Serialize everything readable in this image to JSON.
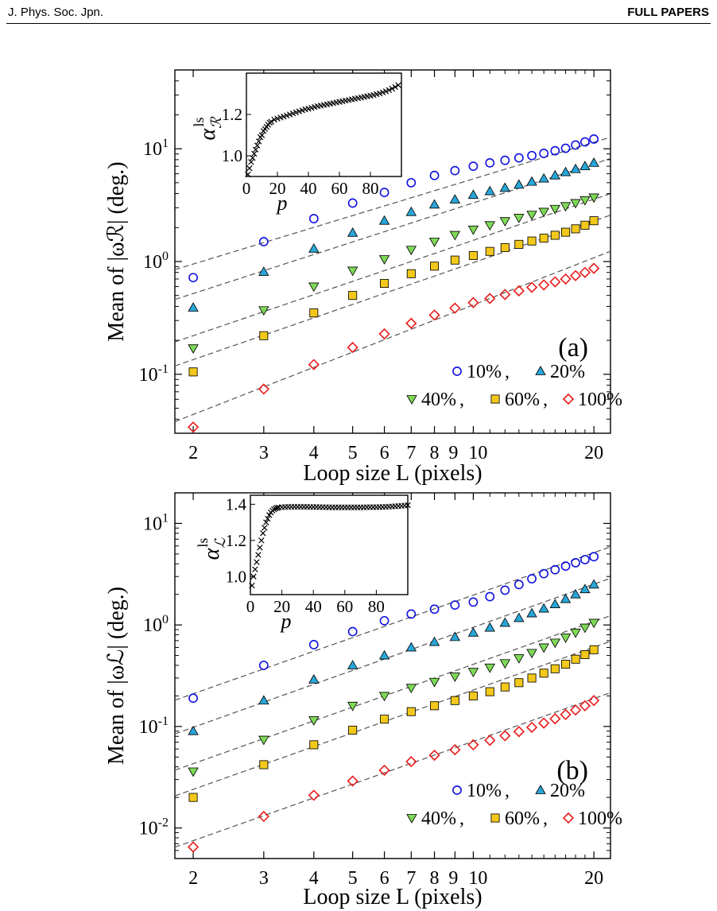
{
  "header": {
    "journal": "J. Phys. Soc. Jpn.",
    "section": "FULL PAPERS"
  },
  "colors": {
    "10%": "#1010e0",
    "20%": "#29a6d8",
    "40%": "#7ed957",
    "60%": "#f2c81a",
    "100%": "#e81c1c",
    "fit_line": "#555555"
  },
  "chart_data": [
    {
      "type": "scatter",
      "panel_label": "(a)",
      "xlabel": "Loop size L (pixels)",
      "ylabel": "Mean of |ωℛ| (deg.)",
      "xscale": "log",
      "yscale": "log",
      "xlim": [
        1.8,
        22
      ],
      "ylim": [
        0.03,
        50
      ],
      "x_ticks": [
        2,
        3,
        4,
        5,
        6,
        7,
        8,
        9,
        10,
        20
      ],
      "x_tick_labels": [
        "2",
        "3",
        "4",
        "5",
        "6",
        "7",
        "8",
        "9",
        "10",
        "20"
      ],
      "y_ticks": [
        0.1,
        1,
        10
      ],
      "y_tick_labels": [
        [
          "10",
          "-1"
        ],
        [
          "10",
          "0"
        ],
        [
          "10",
          "1"
        ]
      ],
      "legend": {
        "placement": "bottom-right",
        "rows": [
          [
            "10%",
            "20%"
          ],
          [
            "40%",
            "60%",
            "100%"
          ]
        ]
      },
      "x": [
        2,
        3,
        4,
        5,
        6,
        7,
        8,
        9,
        10,
        11,
        12,
        13,
        14,
        15,
        16,
        17,
        18,
        19,
        20
      ],
      "series": [
        {
          "name": "10%",
          "marker": "circle",
          "fit": [
            0.95,
            1.08
          ],
          "values": [
            0.72,
            1.5,
            2.4,
            3.3,
            4.1,
            5.0,
            5.8,
            6.4,
            7.0,
            7.5,
            7.9,
            8.3,
            8.7,
            9.1,
            9.6,
            10.1,
            10.8,
            11.5,
            12.2
          ]
        },
        {
          "name": "20%",
          "marker": "triangle-up",
          "fit": [
            0.52,
            1.15
          ],
          "values": [
            0.39,
            0.81,
            1.3,
            1.8,
            2.3,
            2.75,
            3.2,
            3.55,
            3.9,
            4.2,
            4.5,
            4.8,
            5.1,
            5.45,
            5.8,
            6.2,
            6.6,
            7.0,
            7.5
          ]
        },
        {
          "name": "40%",
          "marker": "triangle-down",
          "fit": [
            0.22,
            1.21
          ],
          "values": [
            0.17,
            0.37,
            0.6,
            0.83,
            1.05,
            1.27,
            1.5,
            1.72,
            1.92,
            2.1,
            2.28,
            2.44,
            2.6,
            2.76,
            2.93,
            3.1,
            3.3,
            3.5,
            3.7
          ]
        },
        {
          "name": "60%",
          "marker": "square",
          "fit": [
            0.135,
            1.23
          ],
          "values": [
            0.105,
            0.22,
            0.35,
            0.5,
            0.64,
            0.78,
            0.91,
            1.03,
            1.13,
            1.23,
            1.33,
            1.42,
            1.52,
            1.61,
            1.71,
            1.82,
            1.95,
            2.1,
            2.3
          ]
        },
        {
          "name": "100%",
          "marker": "diamond",
          "fit": [
            0.044,
            1.39
          ],
          "values": [
            0.034,
            0.074,
            0.122,
            0.173,
            0.228,
            0.283,
            0.335,
            0.386,
            0.432,
            0.47,
            0.51,
            0.55,
            0.59,
            0.62,
            0.66,
            0.7,
            0.75,
            0.8,
            0.87
          ]
        }
      ],
      "inset": {
        "type": "scatter",
        "xlabel": "p",
        "ylabel": "α",
        "ylabel_sup": "ls",
        "ylabel_sub": "ℛ",
        "xlim": [
          0,
          100
        ],
        "ylim": [
          0.9,
          1.4
        ],
        "x_ticks": [
          0,
          20,
          40,
          60,
          80
        ],
        "y_ticks": [
          1.0,
          1.2
        ],
        "y_tick_labels": [
          "1.0",
          "1.2"
        ],
        "points": [
          [
            1,
            0.91
          ],
          [
            2,
            0.94
          ],
          [
            3,
            0.97
          ],
          [
            4,
            0.99
          ],
          [
            5,
            1.01
          ],
          [
            6,
            1.03
          ],
          [
            7,
            1.05
          ],
          [
            8,
            1.07
          ],
          [
            9,
            1.09
          ],
          [
            10,
            1.1
          ],
          [
            11,
            1.12
          ],
          [
            12,
            1.13
          ],
          [
            13,
            1.14
          ],
          [
            14,
            1.15
          ],
          [
            15,
            1.16
          ],
          [
            16,
            1.165
          ],
          [
            18,
            1.175
          ],
          [
            20,
            1.18
          ],
          [
            22,
            1.185
          ],
          [
            24,
            1.19
          ],
          [
            26,
            1.195
          ],
          [
            28,
            1.2
          ],
          [
            30,
            1.205
          ],
          [
            32,
            1.21
          ],
          [
            34,
            1.215
          ],
          [
            36,
            1.22
          ],
          [
            38,
            1.225
          ],
          [
            40,
            1.228
          ],
          [
            42,
            1.232
          ],
          [
            44,
            1.236
          ],
          [
            46,
            1.24
          ],
          [
            48,
            1.243
          ],
          [
            50,
            1.246
          ],
          [
            52,
            1.249
          ],
          [
            54,
            1.252
          ],
          [
            56,
            1.255
          ],
          [
            58,
            1.258
          ],
          [
            60,
            1.261
          ],
          [
            62,
            1.264
          ],
          [
            64,
            1.267
          ],
          [
            66,
            1.27
          ],
          [
            68,
            1.273
          ],
          [
            70,
            1.276
          ],
          [
            72,
            1.279
          ],
          [
            74,
            1.282
          ],
          [
            76,
            1.285
          ],
          [
            78,
            1.288
          ],
          [
            80,
            1.291
          ],
          [
            82,
            1.294
          ],
          [
            84,
            1.298
          ],
          [
            86,
            1.302
          ],
          [
            88,
            1.307
          ],
          [
            90,
            1.312
          ],
          [
            92,
            1.318
          ],
          [
            94,
            1.325
          ],
          [
            96,
            1.333
          ],
          [
            98,
            1.342
          ]
        ]
      }
    },
    {
      "type": "scatter",
      "panel_label": "(b)",
      "xlabel": "Loop size L (pixels)",
      "ylabel": "Mean of |ωℒ| (deg.)",
      "xscale": "log",
      "yscale": "log",
      "xlim": [
        1.8,
        22
      ],
      "ylim": [
        0.005,
        20
      ],
      "x_ticks": [
        2,
        3,
        4,
        5,
        6,
        7,
        8,
        9,
        10,
        20
      ],
      "x_tick_labels": [
        "2",
        "3",
        "4",
        "5",
        "6",
        "7",
        "8",
        "9",
        "10",
        "20"
      ],
      "y_ticks": [
        0.01,
        0.1,
        1,
        10
      ],
      "y_tick_labels": [
        [
          "10",
          "-2"
        ],
        [
          "10",
          "-1"
        ],
        [
          "10",
          "0"
        ],
        [
          "10",
          "1"
        ]
      ],
      "legend": {
        "placement": "bottom-right",
        "rows": [
          [
            "10%",
            "20%"
          ],
          [
            "40%",
            "60%",
            "100%"
          ]
        ]
      },
      "x": [
        2,
        3,
        4,
        5,
        6,
        7,
        8,
        9,
        10,
        11,
        12,
        13,
        14,
        15,
        16,
        17,
        18,
        19,
        20
      ],
      "series": [
        {
          "name": "10%",
          "marker": "circle",
          "fit": [
            0.21,
            1.39
          ],
          "values": [
            0.19,
            0.4,
            0.64,
            0.86,
            1.1,
            1.28,
            1.43,
            1.57,
            1.68,
            1.9,
            2.2,
            2.5,
            2.85,
            3.2,
            3.5,
            3.8,
            4.1,
            4.4,
            4.7
          ]
        },
        {
          "name": "20%",
          "marker": "triangle-up",
          "fit": [
            0.098,
            1.41
          ],
          "values": [
            0.09,
            0.18,
            0.29,
            0.4,
            0.5,
            0.6,
            0.68,
            0.76,
            0.84,
            0.94,
            1.05,
            1.17,
            1.3,
            1.45,
            1.6,
            1.8,
            2.0,
            2.25,
            2.5
          ]
        },
        {
          "name": "40%",
          "marker": "triangle-down",
          "fit": [
            0.043,
            1.4
          ],
          "values": [
            0.036,
            0.074,
            0.115,
            0.16,
            0.2,
            0.24,
            0.275,
            0.31,
            0.345,
            0.38,
            0.42,
            0.47,
            0.53,
            0.6,
            0.67,
            0.75,
            0.84,
            0.94,
            1.05
          ]
        },
        {
          "name": "60%",
          "marker": "square",
          "fit": [
            0.024,
            1.4
          ],
          "values": [
            0.02,
            0.042,
            0.066,
            0.092,
            0.118,
            0.14,
            0.16,
            0.18,
            0.2,
            0.22,
            0.245,
            0.27,
            0.3,
            0.335,
            0.37,
            0.41,
            0.46,
            0.51,
            0.57
          ]
        },
        {
          "name": "100%",
          "marker": "diamond",
          "fit": [
            0.0075,
            1.4
          ],
          "values": [
            0.0065,
            0.013,
            0.021,
            0.029,
            0.037,
            0.045,
            0.052,
            0.059,
            0.066,
            0.073,
            0.081,
            0.089,
            0.098,
            0.108,
            0.119,
            0.131,
            0.145,
            0.16,
            0.18
          ]
        }
      ],
      "inset": {
        "type": "scatter",
        "xlabel": "p",
        "ylabel": "α",
        "ylabel_sup": "ls",
        "ylabel_sub": "ℒ",
        "xlim": [
          0,
          100
        ],
        "ylim": [
          0.9,
          1.45
        ],
        "x_ticks": [
          0,
          20,
          40,
          60,
          80
        ],
        "y_ticks": [
          1.0,
          1.2,
          1.4
        ],
        "y_tick_labels": [
          "1.0",
          "1.2",
          "1.4"
        ],
        "points": [
          [
            1,
            0.95
          ],
          [
            2,
            1.0
          ],
          [
            3,
            1.04
          ],
          [
            4,
            1.08
          ],
          [
            5,
            1.12
          ],
          [
            6,
            1.16
          ],
          [
            7,
            1.2
          ],
          [
            8,
            1.24
          ],
          [
            9,
            1.27
          ],
          [
            10,
            1.3
          ],
          [
            11,
            1.32
          ],
          [
            12,
            1.34
          ],
          [
            13,
            1.355
          ],
          [
            14,
            1.365
          ],
          [
            15,
            1.372
          ],
          [
            16,
            1.377
          ],
          [
            17,
            1.38
          ],
          [
            18,
            1.382
          ],
          [
            20,
            1.384
          ],
          [
            22,
            1.385
          ],
          [
            24,
            1.386
          ],
          [
            26,
            1.386
          ],
          [
            28,
            1.386
          ],
          [
            30,
            1.386
          ],
          [
            32,
            1.386
          ],
          [
            34,
            1.386
          ],
          [
            36,
            1.386
          ],
          [
            38,
            1.385
          ],
          [
            40,
            1.385
          ],
          [
            42,
            1.385
          ],
          [
            44,
            1.384
          ],
          [
            46,
            1.384
          ],
          [
            48,
            1.384
          ],
          [
            50,
            1.383
          ],
          [
            52,
            1.383
          ],
          [
            54,
            1.383
          ],
          [
            56,
            1.383
          ],
          [
            58,
            1.383
          ],
          [
            60,
            1.383
          ],
          [
            62,
            1.383
          ],
          [
            64,
            1.383
          ],
          [
            66,
            1.383
          ],
          [
            68,
            1.383
          ],
          [
            70,
            1.383
          ],
          [
            72,
            1.383
          ],
          [
            74,
            1.384
          ],
          [
            76,
            1.384
          ],
          [
            78,
            1.384
          ],
          [
            80,
            1.384
          ],
          [
            82,
            1.385
          ],
          [
            84,
            1.385
          ],
          [
            86,
            1.386
          ],
          [
            88,
            1.387
          ],
          [
            90,
            1.388
          ],
          [
            92,
            1.389
          ],
          [
            94,
            1.39
          ],
          [
            96,
            1.391
          ],
          [
            98,
            1.393
          ],
          [
            100,
            1.395
          ]
        ]
      }
    }
  ]
}
